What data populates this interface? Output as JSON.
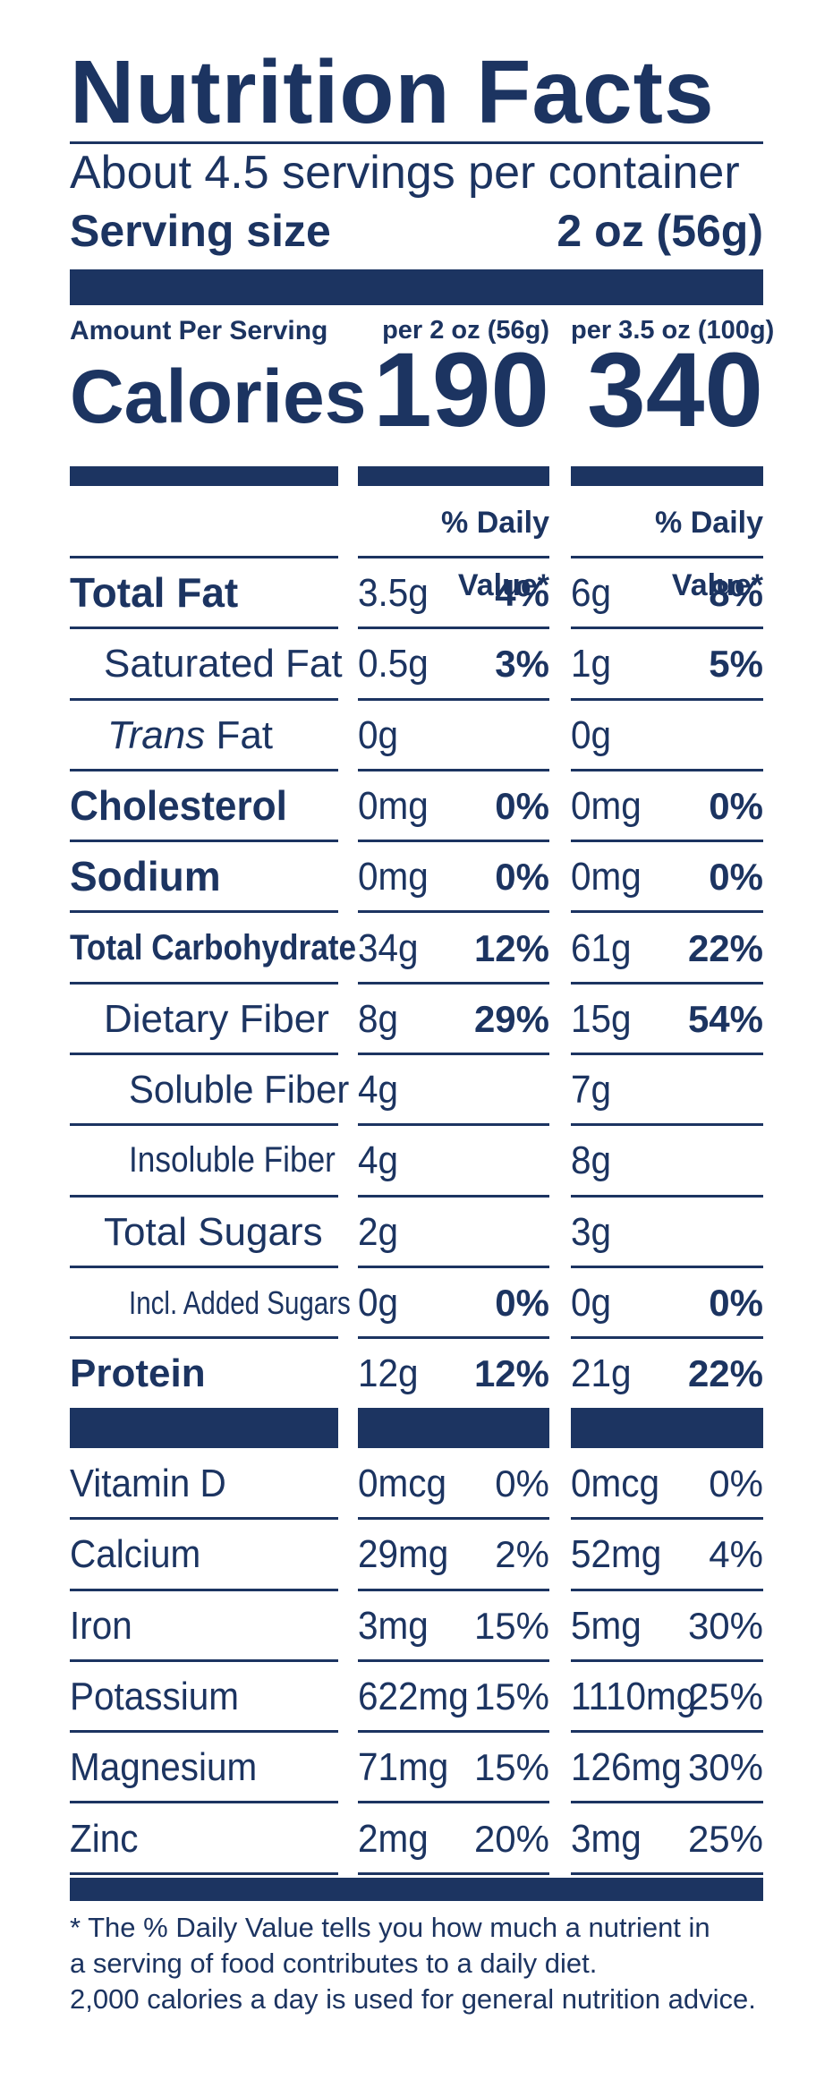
{
  "label": {
    "title": "Nutrition Facts",
    "servings": "About 4.5 servings per container",
    "serving_size_label": "Serving size",
    "serving_size_value": "2 oz (56g)",
    "amount_per_serving": "Amount Per Serving",
    "col1_header": "per 2 oz (56g)",
    "col2_header": "per 3.5 oz (100g)",
    "calories_label": "Calories",
    "calories_col1": "190",
    "calories_col2": "340",
    "dv_header": "% Daily Value*",
    "footnote_1": "* The % Daily Value tells you how much a nutrient in",
    "footnote_2": "a serving of food contributes to a daily diet.",
    "footnote_3": "2,000 calories a day is used for general nutrition advice."
  },
  "nutrients": [
    {
      "name": "Total Fat",
      "q1": "3.5g",
      "dv1": "4%",
      "q2": "6g",
      "dv2": "8%"
    },
    {
      "name": "Saturated Fat",
      "q1": "0.5g",
      "dv1": "3%",
      "q2": "1g",
      "dv2": "5%"
    },
    {
      "name_italic": "Trans",
      "name": " Fat",
      "q1": "0g",
      "dv1": "",
      "q2": "0g",
      "dv2": ""
    },
    {
      "name": "Cholesterol",
      "q1": "0mg",
      "dv1": "0%",
      "q2": "0mg",
      "dv2": "0%"
    },
    {
      "name": "Sodium",
      "q1": "0mg",
      "dv1": "0%",
      "q2": "0mg",
      "dv2": "0%"
    },
    {
      "name": "Total Carbohydrate",
      "q1": "34g",
      "dv1": "12%",
      "q2": "61g",
      "dv2": "22%"
    },
    {
      "name": "Dietary Fiber",
      "q1": "8g",
      "dv1": "29%",
      "q2": "15g",
      "dv2": "54%"
    },
    {
      "name": "Soluble Fiber",
      "q1": "4g",
      "dv1": "",
      "q2": "7g",
      "dv2": ""
    },
    {
      "name": "Insoluble Fiber",
      "q1": "4g",
      "dv1": "",
      "q2": "8g",
      "dv2": ""
    },
    {
      "name": "Total Sugars",
      "q1": "2g",
      "dv1": "",
      "q2": "3g",
      "dv2": ""
    },
    {
      "name": "Incl. Added Sugars",
      "q1": "0g",
      "dv1": "0%",
      "q2": "0g",
      "dv2": "0%"
    },
    {
      "name": "Protein",
      "q1": "12g",
      "dv1": "12%",
      "q2": "21g",
      "dv2": "22%"
    }
  ],
  "vitamins": [
    {
      "name": "Vitamin D",
      "q1": "0mcg",
      "dv1": "0%",
      "q2": "0mcg",
      "dv2": "0%"
    },
    {
      "name": "Calcium",
      "q1": "29mg",
      "dv1": "2%",
      "q2": "52mg",
      "dv2": "4%"
    },
    {
      "name": "Iron",
      "q1": "3mg",
      "dv1": "15%",
      "q2": "5mg",
      "dv2": "30%"
    },
    {
      "name": "Potassium",
      "q1": "622mg",
      "dv1": "15%",
      "q2": "1110mg",
      "dv2": "25%"
    },
    {
      "name": "Magnesium",
      "q1": "71mg",
      "dv1": "15%",
      "q2": "126mg",
      "dv2": "30%"
    },
    {
      "name": "Zinc",
      "q1": "2mg",
      "dv1": "20%",
      "q2": "3mg",
      "dv2": "25%"
    }
  ]
}
